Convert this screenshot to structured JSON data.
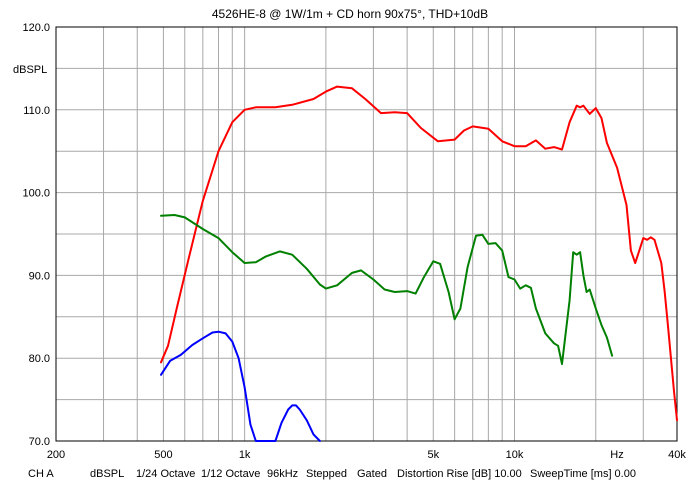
{
  "chart_data": {
    "type": "line",
    "title": "4526HE-8 @ 1W/1m + CD horn 90x75°, THD+10dB",
    "ylabel": "dBSPL",
    "xlabel": "Hz",
    "x_scale": "log",
    "xlim": [
      200,
      40000
    ],
    "ylim": [
      70,
      120
    ],
    "grid": true,
    "x_ticks": [
      {
        "value": 200,
        "label": "200"
      },
      {
        "value": 500,
        "label": "500"
      },
      {
        "value": 1000,
        "label": "1k"
      },
      {
        "value": 5000,
        "label": "5k"
      },
      {
        "value": 10000,
        "label": "10k"
      },
      {
        "value": 40000,
        "label": "40k"
      }
    ],
    "y_ticks": [
      {
        "value": 120,
        "label": "120.0"
      },
      {
        "value": 110,
        "label": "110.0"
      },
      {
        "value": 100,
        "label": "100.0"
      },
      {
        "value": 90,
        "label": "90.0"
      },
      {
        "value": 80,
        "label": "80.0"
      },
      {
        "value": 70,
        "label": "70.0"
      }
    ],
    "series": [
      {
        "color": "#ff0000",
        "points": [
          [
            490,
            79.5
          ],
          [
            520,
            81.5
          ],
          [
            560,
            86
          ],
          [
            620,
            92
          ],
          [
            700,
            99
          ],
          [
            800,
            105
          ],
          [
            900,
            108.5
          ],
          [
            1000,
            110
          ],
          [
            1100,
            110.3
          ],
          [
            1300,
            110.3
          ],
          [
            1500,
            110.6
          ],
          [
            1800,
            111.3
          ],
          [
            2000,
            112.2
          ],
          [
            2200,
            112.8
          ],
          [
            2500,
            112.6
          ],
          [
            2800,
            111.3
          ],
          [
            3200,
            109.6
          ],
          [
            3600,
            109.7
          ],
          [
            4000,
            109.6
          ],
          [
            4500,
            107.8
          ],
          [
            5200,
            106.2
          ],
          [
            6000,
            106.4
          ],
          [
            6500,
            107.5
          ],
          [
            7000,
            108
          ],
          [
            8000,
            107.7
          ],
          [
            9000,
            106.2
          ],
          [
            10000,
            105.6
          ],
          [
            11000,
            105.6
          ],
          [
            12000,
            106.3
          ],
          [
            13000,
            105.3
          ],
          [
            14000,
            105.5
          ],
          [
            15000,
            105.2
          ],
          [
            16000,
            108.5
          ],
          [
            17000,
            110.5
          ],
          [
            17500,
            110.3
          ],
          [
            18000,
            110.5
          ],
          [
            19000,
            109.5
          ],
          [
            20000,
            110.2
          ],
          [
            21000,
            109
          ],
          [
            22000,
            106
          ],
          [
            24000,
            103
          ],
          [
            26000,
            98.5
          ],
          [
            27000,
            93
          ],
          [
            28000,
            91.5
          ],
          [
            29000,
            93
          ],
          [
            30000,
            94.5
          ],
          [
            31000,
            94.3
          ],
          [
            32000,
            94.6
          ],
          [
            33000,
            94.3
          ],
          [
            35000,
            91.5
          ],
          [
            36000,
            88
          ],
          [
            37000,
            84
          ],
          [
            39000,
            76
          ],
          [
            40000,
            72.5
          ]
        ]
      },
      {
        "color": "#008000",
        "points": [
          [
            490,
            97.2
          ],
          [
            550,
            97.3
          ],
          [
            600,
            97
          ],
          [
            700,
            95.6
          ],
          [
            800,
            94.5
          ],
          [
            900,
            92.8
          ],
          [
            1000,
            91.5
          ],
          [
            1100,
            91.6
          ],
          [
            1200,
            92.3
          ],
          [
            1350,
            92.9
          ],
          [
            1500,
            92.5
          ],
          [
            1700,
            90.8
          ],
          [
            1900,
            88.9
          ],
          [
            2000,
            88.4
          ],
          [
            2200,
            88.8
          ],
          [
            2500,
            90.3
          ],
          [
            2700,
            90.6
          ],
          [
            3000,
            89.5
          ],
          [
            3300,
            88.3
          ],
          [
            3600,
            88
          ],
          [
            4000,
            88.1
          ],
          [
            4300,
            87.8
          ],
          [
            4600,
            89.7
          ],
          [
            5000,
            91.7
          ],
          [
            5300,
            91.4
          ],
          [
            5700,
            88
          ],
          [
            6000,
            84.7
          ],
          [
            6300,
            86
          ],
          [
            6700,
            91
          ],
          [
            7200,
            94.8
          ],
          [
            7600,
            94.9
          ],
          [
            8000,
            93.8
          ],
          [
            8500,
            93.9
          ],
          [
            9000,
            93
          ],
          [
            9500,
            89.8
          ],
          [
            10000,
            89.5
          ],
          [
            10500,
            88.4
          ],
          [
            11000,
            88.8
          ],
          [
            11500,
            88.5
          ],
          [
            12000,
            86
          ],
          [
            13000,
            83
          ],
          [
            14000,
            81.8
          ],
          [
            14500,
            81.5
          ],
          [
            15000,
            79.3
          ],
          [
            16000,
            87
          ],
          [
            16500,
            92.8
          ],
          [
            17000,
            92.5
          ],
          [
            17500,
            92.8
          ],
          [
            18000,
            90
          ],
          [
            18500,
            88
          ],
          [
            19000,
            88.3
          ],
          [
            20000,
            86
          ],
          [
            21000,
            84
          ],
          [
            22000,
            82.5
          ],
          [
            23000,
            80.3
          ]
        ]
      },
      {
        "color": "#0000ff",
        "points": [
          [
            490,
            78
          ],
          [
            530,
            79.7
          ],
          [
            580,
            80.4
          ],
          [
            640,
            81.6
          ],
          [
            700,
            82.4
          ],
          [
            760,
            83.1
          ],
          [
            800,
            83.2
          ],
          [
            850,
            83
          ],
          [
            900,
            82
          ],
          [
            950,
            80
          ],
          [
            1000,
            76.5
          ],
          [
            1050,
            72
          ],
          [
            1100,
            70
          ],
          [
            1300,
            70
          ],
          [
            1370,
            72.2
          ],
          [
            1450,
            73.8
          ],
          [
            1500,
            74.3
          ],
          [
            1550,
            74.3
          ],
          [
            1600,
            73.8
          ],
          [
            1700,
            72.5
          ],
          [
            1800,
            70.8
          ],
          [
            1900,
            70
          ]
        ]
      }
    ]
  },
  "footer": {
    "channel": "CH A",
    "unit": "dBSPL",
    "octave1": "1/24 Octave",
    "octave2": "1/12 Octave",
    "rate": "96kHz",
    "stepped": "Stepped",
    "gated": "Gated",
    "distortion": "Distortion Rise [dB] 10.00",
    "sweep": "SweepTime [ms] 0.00"
  }
}
